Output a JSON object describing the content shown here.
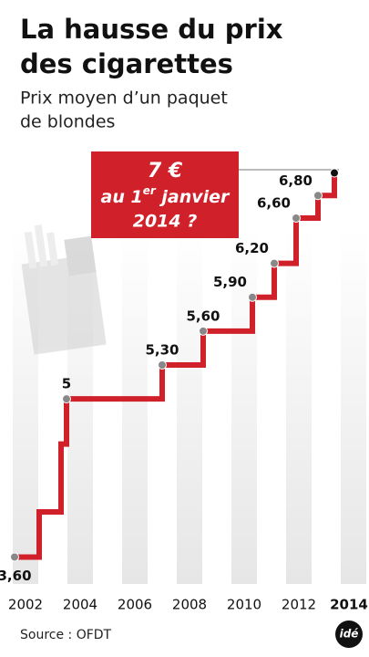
{
  "chart_data": {
    "type": "step",
    "title": [
      "La hausse du prix",
      "des cigarettes"
    ],
    "subtitle": [
      "Prix moyen d’un paquet",
      "de blondes"
    ],
    "callout": {
      "line1": "7 €",
      "line2_start": "au 1",
      "line2_sup": "er",
      "line2_end": " janvier",
      "line3": "2014 ?"
    },
    "source": "Source : OFDT",
    "logo": "idé",
    "x": [
      2001.6,
      2002.5,
      2003.3,
      2003.5,
      2007.0,
      2008.5,
      2010.3,
      2011.1,
      2011.9,
      2012.7,
      2013.3
    ],
    "values": [
      3.6,
      4.0,
      4.6,
      5.0,
      5.3,
      5.6,
      5.9,
      6.2,
      6.6,
      6.8,
      7.0
    ],
    "value_labels": [
      "3,60",
      null,
      null,
      "5",
      "5,30",
      "5,60",
      "5,90",
      "6,20",
      "6,60",
      "6,80",
      null
    ],
    "color": "#d0202a",
    "xlim": [
      2001.5,
      2014.5
    ],
    "xticks": [
      2002,
      2004,
      2006,
      2008,
      2010,
      2012,
      2014
    ],
    "ylim": [
      3.2,
      7.4
    ]
  }
}
